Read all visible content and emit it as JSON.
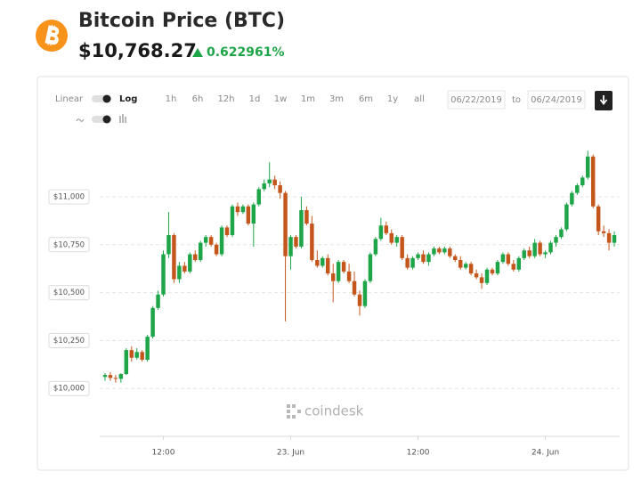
{
  "header": {
    "title": "Bitcoin Price (BTC)",
    "price": "$10,768.27",
    "change": "0.622961%"
  },
  "controls": {
    "scale_options": [
      "Linear",
      "Log"
    ],
    "ranges": [
      "1h",
      "6h",
      "12h",
      "1d",
      "1w",
      "1m",
      "3m",
      "6m",
      "1y",
      "all"
    ],
    "date_from": "06/22/2019",
    "to_label": "to",
    "date_to": "06/24/2019"
  },
  "chart_data": {
    "type": "candlestick",
    "watermark": "coindesk",
    "up_color": "#1ea548",
    "down_color": "#c4561c",
    "grid": true,
    "xlim": [
      "2019-06-22T06:00",
      "2019-06-24T07:00"
    ],
    "xticks": [
      {
        "value": "2019-06-22T12:00",
        "label": "12:00"
      },
      {
        "value": "2019-06-23T00:00",
        "label": "23. Jun"
      },
      {
        "value": "2019-06-23T12:00",
        "label": "12:00"
      },
      {
        "value": "2019-06-24T00:00",
        "label": "24. Jun"
      }
    ],
    "ylim": [
      9750,
      11260
    ],
    "yticks": [
      {
        "value": 10000,
        "label": "$10,000"
      },
      {
        "value": 10250,
        "label": "$10,250"
      },
      {
        "value": 10500,
        "label": "$10,500"
      },
      {
        "value": 10750,
        "label": "$10,750"
      },
      {
        "value": 11000,
        "label": "$11,000"
      }
    ],
    "x": [
      "2019-06-22T06:30",
      "2019-06-22T07:00",
      "2019-06-22T07:30",
      "2019-06-22T08:00",
      "2019-06-22T08:30",
      "2019-06-22T09:00",
      "2019-06-22T09:30",
      "2019-06-22T10:00",
      "2019-06-22T10:30",
      "2019-06-22T11:00",
      "2019-06-22T11:30",
      "2019-06-22T12:00",
      "2019-06-22T12:30",
      "2019-06-22T13:00",
      "2019-06-22T13:30",
      "2019-06-22T14:00",
      "2019-06-22T14:30",
      "2019-06-22T15:00",
      "2019-06-22T15:30",
      "2019-06-22T16:00",
      "2019-06-22T16:30",
      "2019-06-22T17:00",
      "2019-06-22T17:30",
      "2019-06-22T18:00",
      "2019-06-22T18:30",
      "2019-06-22T19:00",
      "2019-06-22T19:30",
      "2019-06-22T20:00",
      "2019-06-22T20:30",
      "2019-06-22T21:00",
      "2019-06-22T21:30",
      "2019-06-22T22:00",
      "2019-06-22T22:30",
      "2019-06-22T23:00",
      "2019-06-22T23:30",
      "2019-06-23T00:00",
      "2019-06-23T00:30",
      "2019-06-23T01:00",
      "2019-06-23T01:30",
      "2019-06-23T02:00",
      "2019-06-23T02:30",
      "2019-06-23T03:00",
      "2019-06-23T03:30",
      "2019-06-23T04:00",
      "2019-06-23T04:30",
      "2019-06-23T05:00",
      "2019-06-23T05:30",
      "2019-06-23T06:00",
      "2019-06-23T06:30",
      "2019-06-23T07:00",
      "2019-06-23T07:30",
      "2019-06-23T08:00",
      "2019-06-23T08:30",
      "2019-06-23T09:00",
      "2019-06-23T09:30",
      "2019-06-23T10:00",
      "2019-06-23T10:30",
      "2019-06-23T11:00",
      "2019-06-23T11:30",
      "2019-06-23T12:00",
      "2019-06-23T12:30",
      "2019-06-23T13:00",
      "2019-06-23T13:30",
      "2019-06-23T14:00",
      "2019-06-23T14:30",
      "2019-06-23T15:00",
      "2019-06-23T15:30",
      "2019-06-23T16:00",
      "2019-06-23T16:30",
      "2019-06-23T17:00",
      "2019-06-23T17:30",
      "2019-06-23T18:00",
      "2019-06-23T18:30",
      "2019-06-23T19:00",
      "2019-06-23T19:30",
      "2019-06-23T20:00",
      "2019-06-23T20:30",
      "2019-06-23T21:00",
      "2019-06-23T21:30",
      "2019-06-23T22:00",
      "2019-06-23T22:30",
      "2019-06-23T23:00",
      "2019-06-23T23:30",
      "2019-06-24T00:00",
      "2019-06-24T00:30",
      "2019-06-24T01:00",
      "2019-06-24T01:30",
      "2019-06-24T02:00",
      "2019-06-24T02:30",
      "2019-06-24T03:00",
      "2019-06-24T03:30",
      "2019-06-24T04:00",
      "2019-06-24T04:30",
      "2019-06-24T05:00",
      "2019-06-24T05:30",
      "2019-06-24T06:00",
      "2019-06-24T06:30"
    ],
    "open": [
      10060,
      10070,
      10055,
      10050,
      10075,
      10200,
      10160,
      10190,
      10150,
      10270,
      10420,
      10490,
      10700,
      10800,
      10570,
      10640,
      10610,
      10700,
      10670,
      10760,
      10790,
      10750,
      10700,
      10840,
      10800,
      10950,
      10920,
      10950,
      10860,
      10960,
      11040,
      11070,
      11090,
      11060,
      11020,
      10690,
      10790,
      10740,
      10930,
      10860,
      10670,
      10640,
      10680,
      10600,
      10560,
      10660,
      10610,
      10560,
      10490,
      10430,
      10560,
      10700,
      10780,
      10850,
      10810,
      10760,
      10790,
      10680,
      10630,
      10680,
      10700,
      10660,
      10700,
      10730,
      10710,
      10730,
      10690,
      10670,
      10630,
      10650,
      10600,
      10580,
      10550,
      10620,
      10600,
      10660,
      10700,
      10650,
      10620,
      10680,
      10720,
      10690,
      10760,
      10700,
      10710,
      10760,
      10790,
      10830,
      10960,
      11020,
      11060,
      11100,
      11210,
      10950,
      10820,
      10810,
      10760
    ],
    "high": [
      10080,
      10085,
      10070,
      10080,
      10210,
      10220,
      10210,
      10200,
      10280,
      10430,
      10510,
      10720,
      10920,
      10810,
      10660,
      10660,
      10710,
      10720,
      10770,
      10800,
      10800,
      10760,
      10850,
      10850,
      10960,
      10970,
      10960,
      10960,
      10970,
      11050,
      11090,
      11180,
      11110,
      11080,
      11030,
      10800,
      10800,
      11000,
      10950,
      10900,
      10720,
      10690,
      10700,
      10650,
      10670,
      10670,
      10650,
      10610,
      10510,
      10570,
      10710,
      10790,
      10890,
      10870,
      10830,
      10800,
      10800,
      10700,
      10690,
      10710,
      10720,
      10710,
      10740,
      10740,
      10740,
      10740,
      10700,
      10690,
      10660,
      10660,
      10620,
      10600,
      10630,
      10630,
      10670,
      10710,
      10710,
      10670,
      10690,
      10730,
      10740,
      10780,
      10770,
      10720,
      10770,
      10800,
      10840,
      10970,
      11030,
      11070,
      11110,
      11240,
      11220,
      10960,
      10850,
      10830,
      10820
    ],
    "low": [
      10040,
      10040,
      10030,
      10030,
      10070,
      10140,
      10150,
      10140,
      10140,
      10260,
      10410,
      10480,
      10680,
      10550,
      10550,
      10600,
      10600,
      10660,
      10660,
      10740,
      10740,
      10690,
      10690,
      10790,
      10790,
      10900,
      10910,
      10850,
      10740,
      10950,
      11030,
      11050,
      11040,
      10990,
      10350,
      10620,
      10730,
      10730,
      10850,
      10660,
      10630,
      10630,
      10590,
      10450,
      10550,
      10600,
      10550,
      10480,
      10380,
      10420,
      10550,
      10690,
      10770,
      10800,
      10750,
      10740,
      10670,
      10620,
      10620,
      10670,
      10650,
      10640,
      10690,
      10700,
      10700,
      10680,
      10660,
      10620,
      10620,
      10590,
      10570,
      10520,
      10540,
      10590,
      10590,
      10650,
      10640,
      10610,
      10610,
      10670,
      10680,
      10680,
      10690,
      10680,
      10700,
      10740,
      10780,
      10820,
      10950,
      11010,
      11050,
      11090,
      10940,
      10800,
      10790,
      10720,
      10740
    ],
    "close": [
      10070,
      10055,
      10050,
      10075,
      10200,
      10160,
      10190,
      10150,
      10270,
      10420,
      10490,
      10700,
      10800,
      10570,
      10640,
      10610,
      10700,
      10670,
      10760,
      10790,
      10750,
      10700,
      10840,
      10800,
      10950,
      10920,
      10950,
      10860,
      10960,
      11040,
      11070,
      11090,
      11060,
      11020,
      10690,
      10790,
      10740,
      10930,
      10860,
      10670,
      10640,
      10680,
      10600,
      10560,
      10660,
      10610,
      10560,
      10490,
      10430,
      10560,
      10700,
      10780,
      10850,
      10810,
      10760,
      10790,
      10680,
      10630,
      10680,
      10700,
      10660,
      10700,
      10730,
      10710,
      10730,
      10690,
      10670,
      10630,
      10650,
      10600,
      10580,
      10550,
      10620,
      10600,
      10660,
      10700,
      10650,
      10620,
      10680,
      10720,
      10690,
      10760,
      10700,
      10710,
      10760,
      10790,
      10830,
      10960,
      11020,
      11060,
      11100,
      11210,
      10950,
      10820,
      10810,
      10760,
      10800
    ]
  }
}
